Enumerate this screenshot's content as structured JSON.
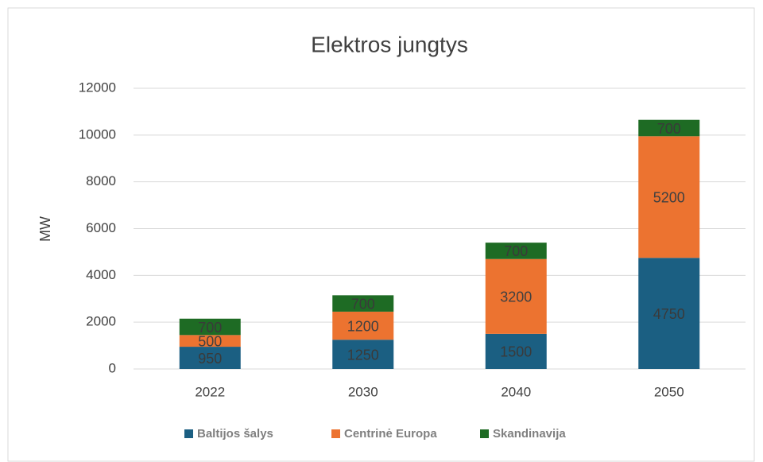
{
  "chart_data": {
    "type": "stacked_bar",
    "title": "Elektros jungtys",
    "y_label": "MW",
    "categories": [
      "2022",
      "2030",
      "2040",
      "2050"
    ],
    "series": [
      {
        "name": "Baltijos šalys",
        "color": "#1b5f82",
        "values": [
          950,
          1250,
          1500,
          4750
        ]
      },
      {
        "name": "Centrinė Europa",
        "color": "#ec7330",
        "values": [
          500,
          1200,
          3200,
          5200
        ]
      },
      {
        "name": "Skandinavija",
        "color": "#1e6b24",
        "values": [
          700,
          700,
          700,
          700
        ]
      }
    ],
    "ylim": [
      0,
      12000
    ],
    "yticks": [
      0,
      2000,
      4000,
      6000,
      8000,
      10000,
      12000
    ],
    "grid": true,
    "legend": "bottom"
  }
}
